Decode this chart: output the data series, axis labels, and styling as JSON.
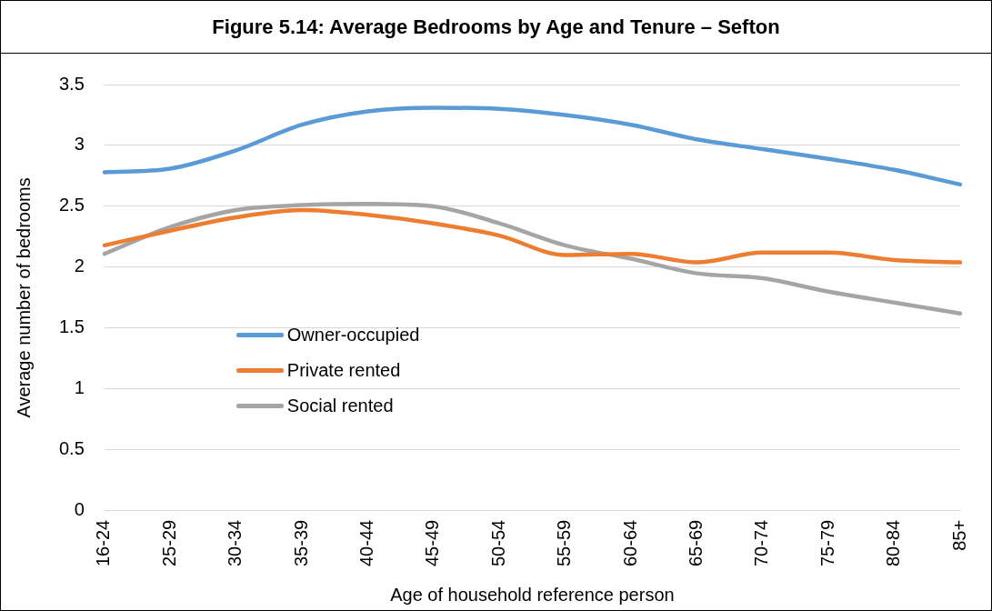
{
  "chart_data": {
    "type": "line",
    "title": "Figure 5.14: Average Bedrooms by Age and Tenure – Sefton",
    "xlabel": "Age of household reference person",
    "ylabel": "Average number of bedrooms",
    "categories": [
      "16-24",
      "25-29",
      "30-34",
      "35-39",
      "40-44",
      "45-49",
      "50-54",
      "55-59",
      "60-64",
      "65-69",
      "70-74",
      "75-79",
      "80-84",
      "85+"
    ],
    "series": [
      {
        "name": "Owner-occupied",
        "color": "#5b9bd5",
        "values": [
          2.78,
          2.81,
          2.96,
          3.17,
          3.28,
          3.31,
          3.3,
          3.25,
          3.17,
          3.05,
          2.97,
          2.89,
          2.8,
          2.68
        ]
      },
      {
        "name": "Private rented",
        "color": "#ed7d31",
        "values": [
          2.18,
          2.3,
          2.41,
          2.47,
          2.43,
          2.36,
          2.26,
          2.1,
          2.11,
          2.04,
          2.12,
          2.12,
          2.06,
          2.04
        ]
      },
      {
        "name": "Social rented",
        "color": "#a5a5a5",
        "values": [
          2.11,
          2.33,
          2.47,
          2.51,
          2.52,
          2.5,
          2.36,
          2.18,
          2.07,
          1.95,
          1.91,
          1.8,
          1.71,
          1.62
        ]
      }
    ],
    "ylim": [
      0,
      3.5
    ],
    "yticks": [
      0,
      0.5,
      1,
      1.5,
      2,
      2.5,
      3,
      3.5
    ],
    "grid": "y",
    "legend": "center left",
    "marker": "none",
    "line_style": "solid"
  }
}
